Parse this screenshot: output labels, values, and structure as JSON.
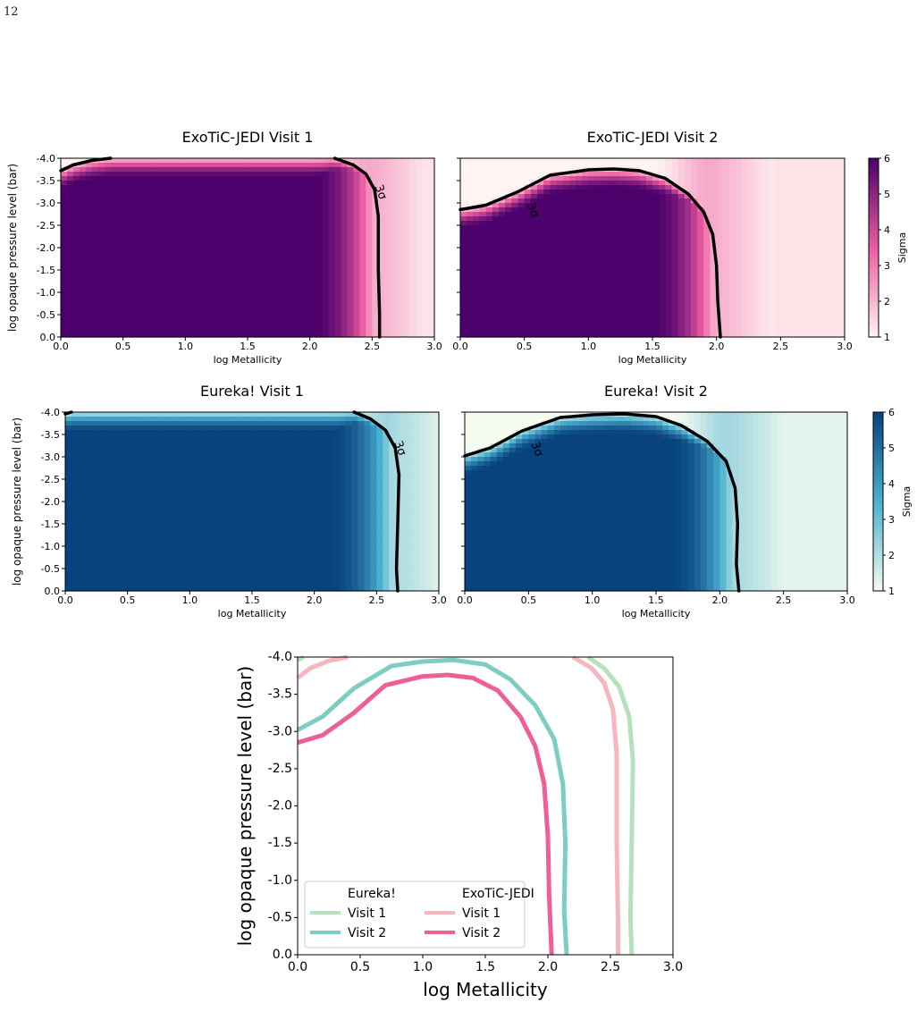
{
  "page": {
    "number": "12"
  },
  "colors": {
    "pink_low": "#fff4f2",
    "pink_mid": "#ec5ba0",
    "pink_high": "#4b006b",
    "blue_low": "#f7fcf0",
    "blue_mid": "#4ab0cf",
    "blue_high": "#08437e",
    "eureka_visit1": "#b5e2bb",
    "eureka_visit2": "#7dcdc4",
    "jedi_visit1": "#f6b5bf",
    "jedi_visit2": "#ef5f97",
    "contour": "#000000"
  },
  "chart_data": [
    {
      "type": "heatmap",
      "title": "ExoTiC-JEDI Visit 1",
      "xlabel": "log Metallicity",
      "ylabel": "log opaque pressure level (bar)",
      "xlim": [
        0.0,
        3.0
      ],
      "ylim": [
        0.0,
        -4.0
      ],
      "xticks": [
        "0.0",
        "0.5",
        "1.0",
        "1.5",
        "2.0",
        "2.5",
        "3.0"
      ],
      "yticks": [
        "-4.0",
        "-3.5",
        "-3.0",
        "-2.5",
        "-2.0",
        "-1.5",
        "-1.0",
        "-0.5",
        "0.0"
      ],
      "colorscale": "pink",
      "contour_label": "3σ",
      "contour_3sigma": [
        [
          [
            0.0,
            -3.72
          ],
          [
            0.1,
            -3.85
          ],
          [
            0.25,
            -3.95
          ],
          [
            0.4,
            -4.0
          ]
        ],
        [
          [
            2.2,
            -4.0
          ],
          [
            2.35,
            -3.85
          ],
          [
            2.45,
            -3.65
          ],
          [
            2.52,
            -3.3
          ],
          [
            2.55,
            -2.7
          ],
          [
            2.55,
            -1.5
          ],
          [
            2.56,
            -0.5
          ],
          [
            2.56,
            0.0
          ]
        ]
      ]
    },
    {
      "type": "heatmap",
      "title": "ExoTiC-JEDI Visit 2",
      "xlabel": "log Metallicity",
      "ylabel": "",
      "xlim": [
        0.0,
        3.0
      ],
      "ylim": [
        0.0,
        -4.0
      ],
      "xticks": [
        "0.0",
        "0.5",
        "1.0",
        "1.5",
        "2.0",
        "2.5",
        "3.0"
      ],
      "yticks": [],
      "colorscale": "pink",
      "colorbar": {
        "label": "Sigma",
        "ticks": [
          "1",
          "2",
          "3",
          "4",
          "5",
          "6"
        ],
        "range": [
          1,
          6
        ]
      },
      "contour_label": "3σ",
      "contour_3sigma": [
        [
          [
            0.0,
            -2.85
          ],
          [
            0.2,
            -2.95
          ],
          [
            0.45,
            -3.25
          ],
          [
            0.7,
            -3.62
          ],
          [
            1.0,
            -3.74
          ],
          [
            1.2,
            -3.76
          ],
          [
            1.4,
            -3.72
          ],
          [
            1.6,
            -3.55
          ],
          [
            1.78,
            -3.2
          ],
          [
            1.9,
            -2.8
          ],
          [
            1.97,
            -2.3
          ],
          [
            2.0,
            -1.6
          ],
          [
            2.01,
            -0.8
          ],
          [
            2.03,
            0.0
          ]
        ]
      ]
    },
    {
      "type": "heatmap",
      "title": "Eureka! Visit 1",
      "xlabel": "log Metallicity",
      "ylabel": "log opaque pressure level (bar)",
      "xlim": [
        0.0,
        3.0
      ],
      "ylim": [
        0.0,
        -4.0
      ],
      "xticks": [
        "0.0",
        "0.5",
        "1.0",
        "1.5",
        "2.0",
        "2.5",
        "3.0"
      ],
      "yticks": [
        "-4.0",
        "-3.5",
        "-3.0",
        "-2.5",
        "-2.0",
        "-1.5",
        "-1.0",
        "-0.5",
        "0.0"
      ],
      "colorscale": "blue",
      "contour_label": "3σ",
      "contour_3sigma": [
        [
          [
            0.0,
            -3.96
          ],
          [
            0.05,
            -4.0
          ]
        ],
        [
          [
            2.32,
            -4.0
          ],
          [
            2.45,
            -3.85
          ],
          [
            2.57,
            -3.6
          ],
          [
            2.65,
            -3.2
          ],
          [
            2.68,
            -2.6
          ],
          [
            2.67,
            -1.5
          ],
          [
            2.66,
            -0.5
          ],
          [
            2.67,
            0.0
          ]
        ]
      ]
    },
    {
      "type": "heatmap",
      "title": "Eureka! Visit 2",
      "xlabel": "log Metallicity",
      "ylabel": "",
      "xlim": [
        0.0,
        3.0
      ],
      "ylim": [
        0.0,
        -4.0
      ],
      "xticks": [
        "0.0",
        "0.5",
        "1.0",
        "1.5",
        "2.0",
        "2.5",
        "3.0"
      ],
      "yticks": [],
      "colorscale": "blue",
      "colorbar": {
        "label": "Sigma",
        "ticks": [
          "1",
          "2",
          "3",
          "4",
          "5",
          "6"
        ],
        "range": [
          1,
          6
        ]
      },
      "contour_label": "3σ",
      "contour_3sigma": [
        [
          [
            0.0,
            -3.02
          ],
          [
            0.2,
            -3.2
          ],
          [
            0.45,
            -3.58
          ],
          [
            0.75,
            -3.88
          ],
          [
            1.0,
            -3.94
          ],
          [
            1.25,
            -3.96
          ],
          [
            1.5,
            -3.9
          ],
          [
            1.7,
            -3.7
          ],
          [
            1.9,
            -3.35
          ],
          [
            2.05,
            -2.9
          ],
          [
            2.12,
            -2.3
          ],
          [
            2.14,
            -1.5
          ],
          [
            2.13,
            -0.6
          ],
          [
            2.15,
            0.0
          ]
        ]
      ]
    },
    {
      "type": "line",
      "title": "",
      "xlabel": "log Metallicity",
      "ylabel": "log opaque pressure level (bar)",
      "xlim": [
        0.0,
        3.0
      ],
      "ylim": [
        0.0,
        -4.0
      ],
      "xticks": [
        "0.0",
        "0.5",
        "1.0",
        "1.5",
        "2.0",
        "2.5",
        "3.0"
      ],
      "yticks": [
        "-4.0",
        "-3.5",
        "-3.0",
        "-2.5",
        "-2.0",
        "-1.5",
        "-1.0",
        "-0.5",
        "0.0"
      ],
      "legend": {
        "position": "lower-left",
        "headers": [
          "Eureka!",
          "ExoTiC-JEDI"
        ],
        "columns": [
          [
            {
              "label": "Visit 1",
              "series": "eureka_v1"
            },
            {
              "label": "Visit 2",
              "series": "eureka_v2"
            }
          ],
          [
            {
              "label": "Visit 1",
              "series": "jedi_v1"
            },
            {
              "label": "Visit 2",
              "series": "jedi_v2"
            }
          ]
        ]
      },
      "series": [
        {
          "id": "eureka_v1",
          "color_key": "eureka_visit1",
          "segments": [
            [
              [
                0.0,
                -3.96
              ],
              [
                0.05,
                -4.0
              ]
            ],
            [
              [
                2.32,
                -4.0
              ],
              [
                2.45,
                -3.85
              ],
              [
                2.57,
                -3.6
              ],
              [
                2.65,
                -3.2
              ],
              [
                2.68,
                -2.6
              ],
              [
                2.67,
                -1.5
              ],
              [
                2.66,
                -0.5
              ],
              [
                2.67,
                0.0
              ]
            ]
          ]
        },
        {
          "id": "eureka_v2",
          "color_key": "eureka_visit2",
          "segments": [
            [
              [
                0.0,
                -3.02
              ],
              [
                0.2,
                -3.2
              ],
              [
                0.45,
                -3.58
              ],
              [
                0.75,
                -3.88
              ],
              [
                1.0,
                -3.94
              ],
              [
                1.25,
                -3.96
              ],
              [
                1.5,
                -3.9
              ],
              [
                1.7,
                -3.7
              ],
              [
                1.9,
                -3.35
              ],
              [
                2.05,
                -2.9
              ],
              [
                2.12,
                -2.3
              ],
              [
                2.14,
                -1.5
              ],
              [
                2.13,
                -0.6
              ],
              [
                2.15,
                0.0
              ]
            ]
          ]
        },
        {
          "id": "jedi_v1",
          "color_key": "jedi_visit1",
          "segments": [
            [
              [
                0.0,
                -3.72
              ],
              [
                0.1,
                -3.85
              ],
              [
                0.25,
                -3.95
              ],
              [
                0.4,
                -4.0
              ]
            ],
            [
              [
                2.2,
                -4.0
              ],
              [
                2.35,
                -3.85
              ],
              [
                2.45,
                -3.65
              ],
              [
                2.52,
                -3.3
              ],
              [
                2.55,
                -2.7
              ],
              [
                2.55,
                -1.5
              ],
              [
                2.56,
                -0.5
              ],
              [
                2.56,
                0.0
              ]
            ]
          ]
        },
        {
          "id": "jedi_v2",
          "color_key": "jedi_visit2",
          "segments": [
            [
              [
                0.0,
                -2.85
              ],
              [
                0.2,
                -2.95
              ],
              [
                0.45,
                -3.25
              ],
              [
                0.7,
                -3.62
              ],
              [
                1.0,
                -3.74
              ],
              [
                1.2,
                -3.76
              ],
              [
                1.4,
                -3.72
              ],
              [
                1.6,
                -3.55
              ],
              [
                1.78,
                -3.2
              ],
              [
                1.9,
                -2.8
              ],
              [
                1.97,
                -2.3
              ],
              [
                2.0,
                -1.6
              ],
              [
                2.01,
                -0.8
              ],
              [
                2.03,
                0.0
              ]
            ]
          ]
        }
      ]
    }
  ]
}
